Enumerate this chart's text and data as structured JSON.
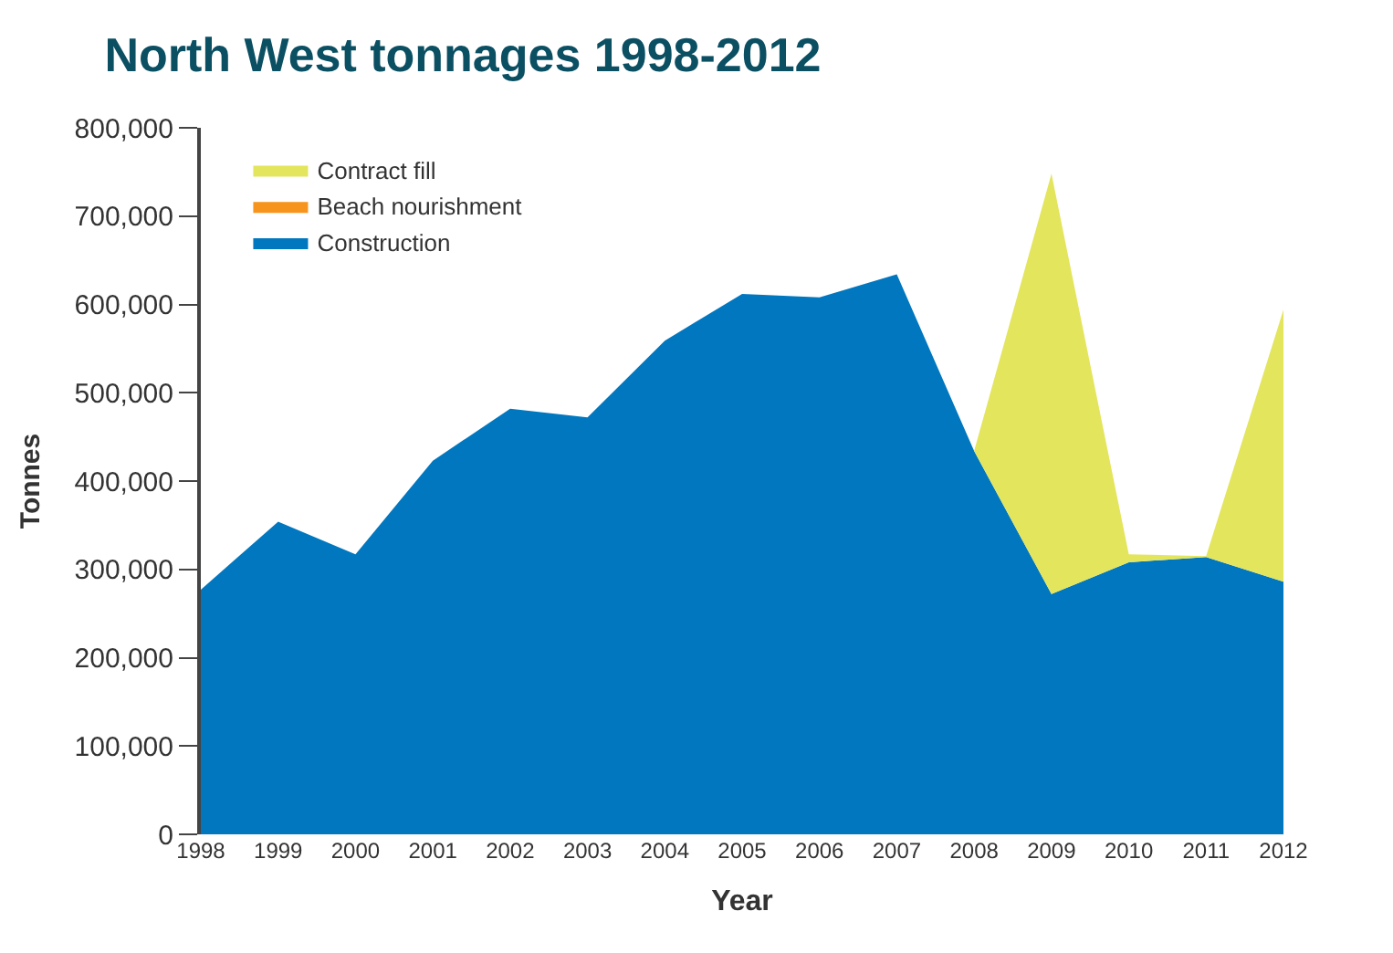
{
  "chart_data": {
    "type": "area",
    "title": "North West tonnages 1998-2012",
    "xlabel": "Year",
    "ylabel": "Tonnes",
    "stacked": true,
    "x": [
      1998,
      1999,
      2000,
      2001,
      2002,
      2003,
      2004,
      2005,
      2006,
      2007,
      2008,
      2009,
      2010,
      2011,
      2012
    ],
    "series": [
      {
        "name": "Construction",
        "color": "#0077bf",
        "values": [
          277000,
          354000,
          317000,
          423000,
          482000,
          472000,
          559000,
          612000,
          608000,
          634000,
          434000,
          272000,
          308000,
          314000,
          286000
        ]
      },
      {
        "name": "Beach nourishment",
        "color": "#f7941d",
        "values": [
          null,
          null,
          null,
          null,
          null,
          null,
          null,
          null,
          null,
          null,
          null,
          null,
          null,
          null,
          null
        ]
      },
      {
        "name": "Contract fill",
        "color": "#e3e55c",
        "values": [
          0,
          0,
          0,
          0,
          0,
          0,
          0,
          0,
          0,
          0,
          0,
          476000,
          9000,
          1000,
          308000
        ]
      }
    ],
    "xlim": [
      1998,
      2012
    ],
    "xticks": [
      1998,
      1999,
      2000,
      2001,
      2002,
      2003,
      2004,
      2005,
      2006,
      2007,
      2008,
      2009,
      2010,
      2011,
      2012
    ],
    "ylim": [
      0,
      800000
    ],
    "yticks": [
      {
        "value": 0,
        "label": "0"
      },
      {
        "value": 100000,
        "label": "100,000"
      },
      {
        "value": 200000,
        "label": "200,000"
      },
      {
        "value": 300000,
        "label": "300,000"
      },
      {
        "value": 400000,
        "label": "400,000"
      },
      {
        "value": 500000,
        "label": "500,000"
      },
      {
        "value": 600000,
        "label": "600,000"
      },
      {
        "value": 700000,
        "label": "700,000"
      },
      {
        "value": 800000,
        "label": "800,000"
      }
    ],
    "legend": "top left",
    "marker": "none"
  }
}
